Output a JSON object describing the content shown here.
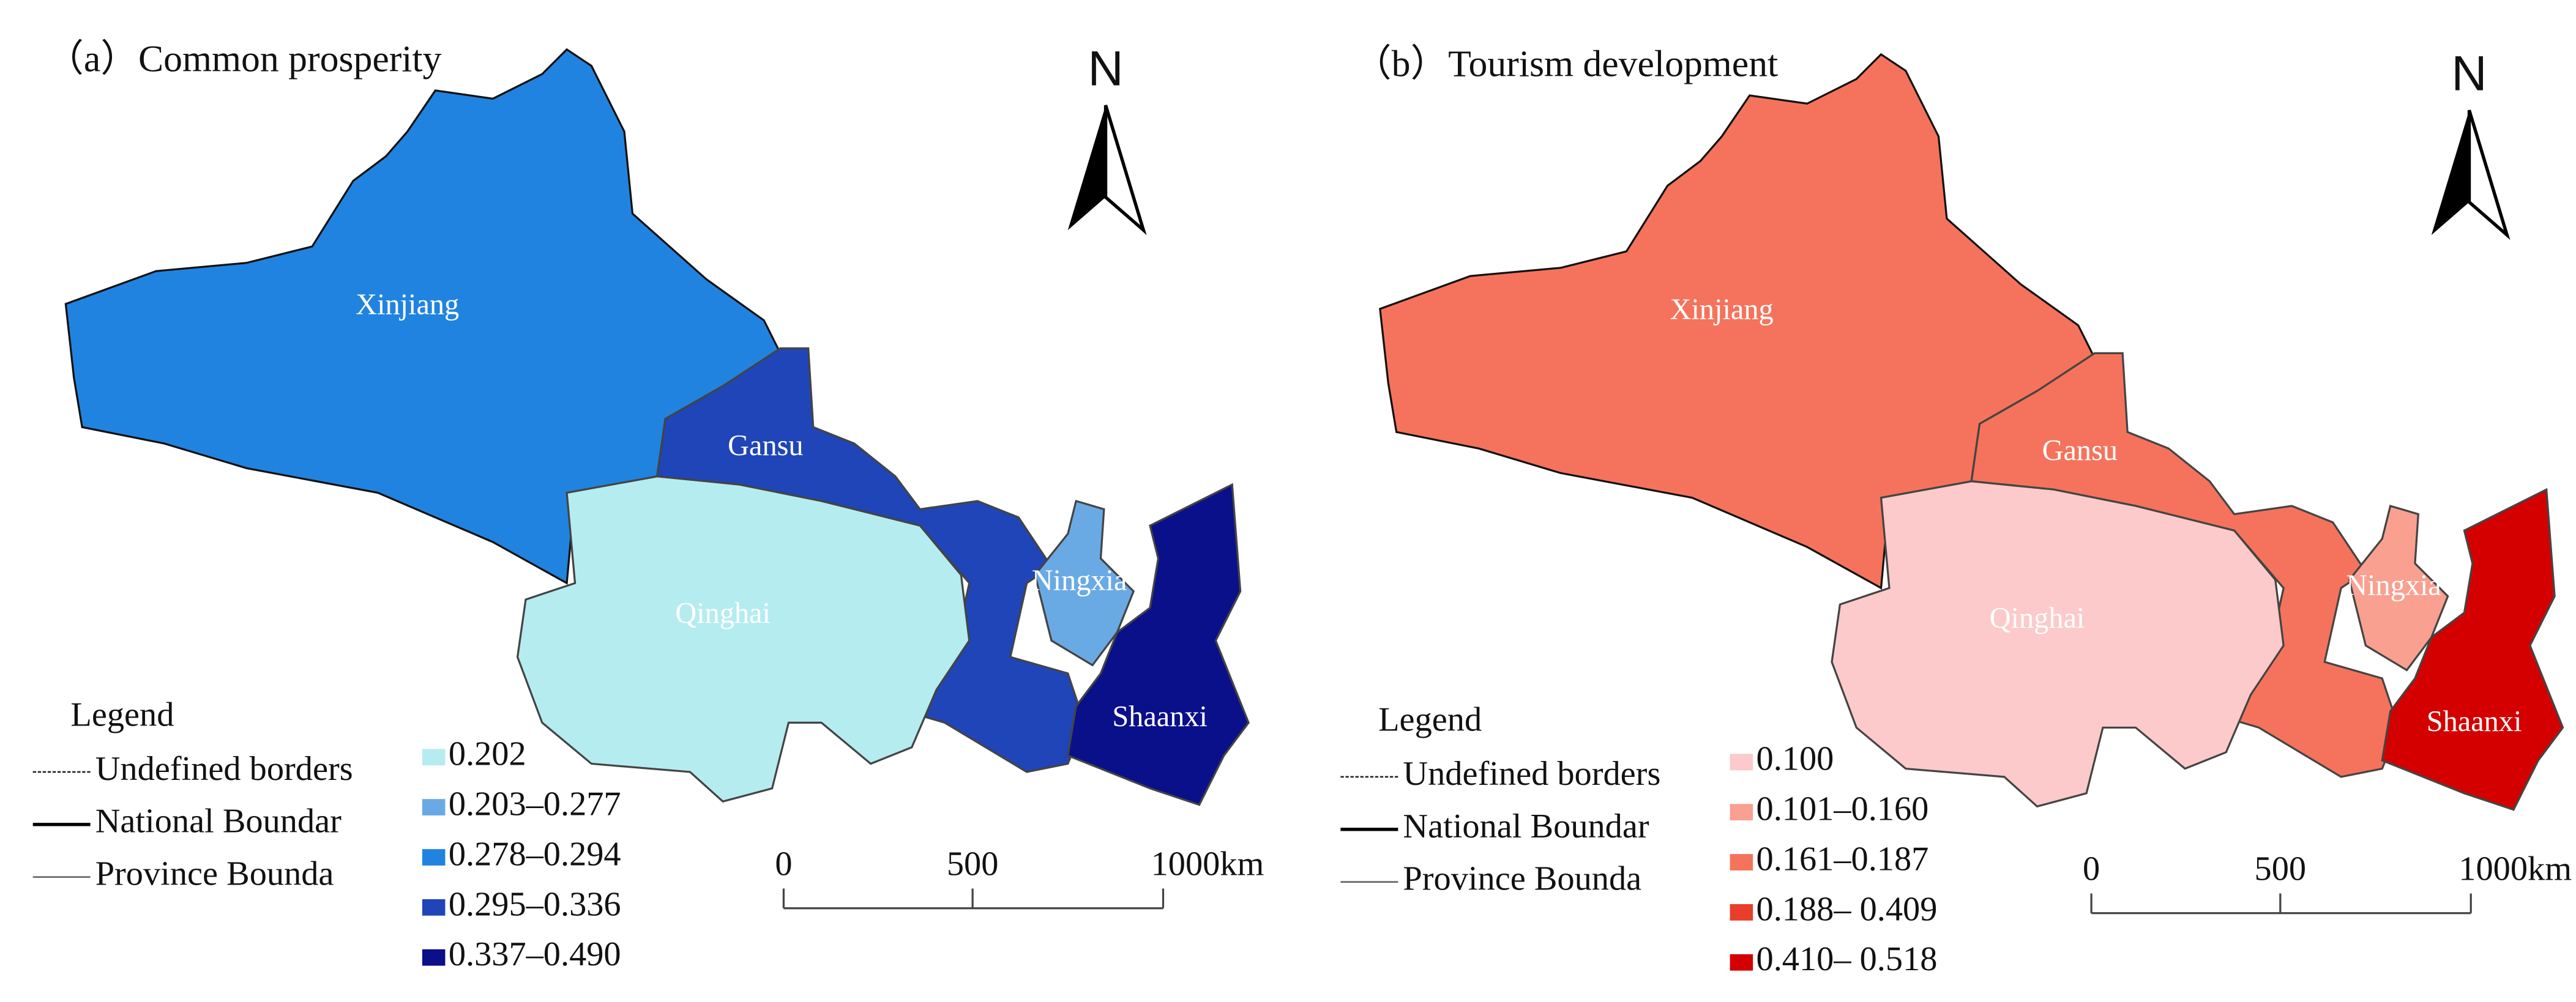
{
  "panels": [
    {
      "title": "（a）Common prosperity",
      "north": "N",
      "regions": [
        {
          "name": "Xinjiang",
          "color": "#2183e0"
        },
        {
          "name": "Gansu",
          "color": "#1f45b8"
        },
        {
          "name": "Qinghai",
          "color": "#b5ecf0"
        },
        {
          "name": "Ningxia",
          "color": "#6aaae4"
        },
        {
          "name": "Shaanxi",
          "color": "#0a0f8a"
        }
      ],
      "legend": {
        "title": "Legend",
        "lines": [
          "Undefined borders",
          "National Boundar",
          "Province Bounda"
        ],
        "classes": [
          {
            "label": "0.202",
            "color": "#b5ecf0"
          },
          {
            "label": "0.203–0.277",
            "color": "#6aaae4"
          },
          {
            "label": "0.278–0.294",
            "color": "#2183e0"
          },
          {
            "label": "0.295–0.336",
            "color": "#1f45b8"
          },
          {
            "label": "0.337–0.490",
            "color": "#0a0f8a"
          }
        ]
      },
      "scale": [
        "0",
        "500",
        "1000km"
      ]
    },
    {
      "title": "（b）Tourism development",
      "north": "N",
      "regions": [
        {
          "name": "Xinjiang",
          "color": "#f5735c"
        },
        {
          "name": "Gansu",
          "color": "#f5735c"
        },
        {
          "name": "Qinghai",
          "color": "#fccaca"
        },
        {
          "name": "Ningxia",
          "color": "#f9a090"
        },
        {
          "name": "Shaanxi",
          "color": "#d40000"
        }
      ],
      "legend": {
        "title": "Legend",
        "lines": [
          "Undefined borders",
          "National Boundar",
          "Province Bounda"
        ],
        "classes": [
          {
            "label": "0.100",
            "color": "#fccaca"
          },
          {
            "label": "0.101–0.160",
            "color": "#f9a090"
          },
          {
            "label": "0.161–0.187",
            "color": "#f5735c"
          },
          {
            "label": "0.188– 0.409",
            "color": "#e83e2a"
          },
          {
            "label": "0.410– 0.518",
            "color": "#d40000"
          }
        ]
      },
      "scale": [
        "0",
        "500",
        "1000km"
      ]
    }
  ]
}
